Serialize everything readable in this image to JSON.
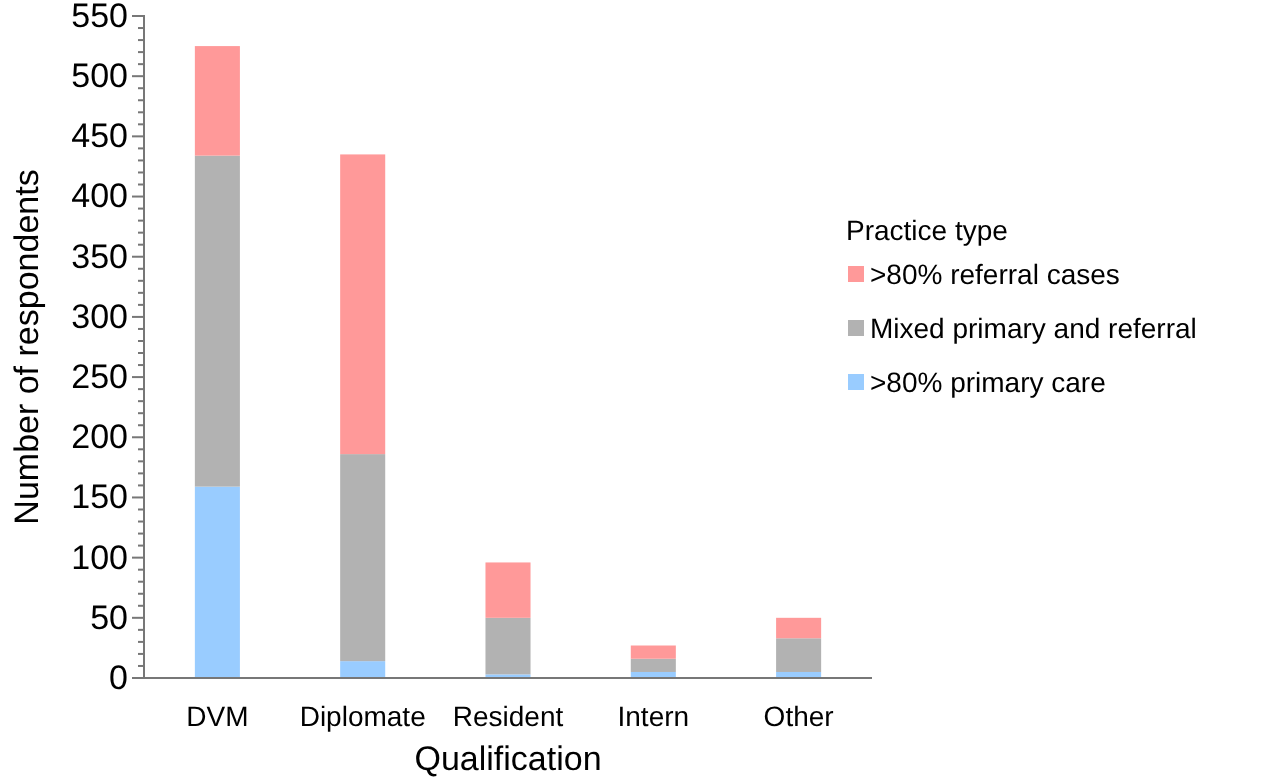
{
  "chart_data": {
    "type": "bar",
    "stacked": true,
    "xlabel": "Qualification",
    "ylabel": "Number of respondents",
    "legend_title": "Practice type",
    "legend": "right",
    "grid": false,
    "categories": [
      "DVM",
      "Diplomate",
      "Resident",
      "Intern",
      "Other"
    ],
    "series": [
      {
        "name": ">80% primary care",
        "color": "#99ccff",
        "values": [
          159,
          14,
          3,
          5,
          5
        ]
      },
      {
        "name": "Mixed primary and referral",
        "color": "#b2b2b2",
        "values": [
          275,
          172,
          47,
          11,
          28
        ]
      },
      {
        "name": ">80% referral cases",
        "color": "#ff9999",
        "values": [
          91,
          249,
          46,
          11,
          17
        ]
      }
    ],
    "ylim": [
      0,
      550
    ],
    "yticks": [
      0,
      {
        "value": 10,
        "label": null
      },
      {
        "value": 20,
        "label": null
      },
      {
        "value": 30,
        "label": null
      },
      {
        "value": 40,
        "label": null
      },
      50,
      {
        "value": 60,
        "label": null
      },
      {
        "value": 70,
        "label": null
      },
      {
        "value": 80,
        "label": null
      },
      {
        "value": 90,
        "label": null
      },
      100,
      {
        "value": 110,
        "label": null
      },
      {
        "value": 120,
        "label": null
      },
      {
        "value": 130,
        "label": null
      },
      {
        "value": 140,
        "label": null
      },
      150,
      {
        "value": 160,
        "label": null
      },
      {
        "value": 170,
        "label": null
      },
      {
        "value": 180,
        "label": null
      },
      {
        "value": 190,
        "label": null
      },
      200,
      {
        "value": 210,
        "label": null
      },
      {
        "value": 220,
        "label": null
      },
      {
        "value": 230,
        "label": null
      },
      {
        "value": 240,
        "label": null
      },
      250,
      {
        "value": 260,
        "label": null
      },
      {
        "value": 270,
        "label": null
      },
      {
        "value": 280,
        "label": null
      },
      {
        "value": 290,
        "label": null
      },
      300,
      {
        "value": 310,
        "label": null
      },
      {
        "value": 320,
        "label": null
      },
      {
        "value": 330,
        "label": null
      },
      {
        "value": 340,
        "label": null
      },
      350,
      {
        "value": 360,
        "label": null
      },
      {
        "value": 370,
        "label": null
      },
      {
        "value": 380,
        "label": null
      },
      {
        "value": 390,
        "label": null
      },
      400,
      {
        "value": 410,
        "label": null
      },
      {
        "value": 420,
        "label": null
      },
      {
        "value": 430,
        "label": null
      },
      {
        "value": 440,
        "label": null
      },
      450,
      {
        "value": 460,
        "label": null
      },
      {
        "value": 470,
        "label": null
      },
      {
        "value": 480,
        "label": null
      },
      {
        "value": 490,
        "label": null
      },
      500,
      {
        "value": 510,
        "label": null
      },
      {
        "value": 520,
        "label": null
      },
      {
        "value": 530,
        "label": null
      },
      {
        "value": 540,
        "label": null
      },
      550
    ]
  }
}
